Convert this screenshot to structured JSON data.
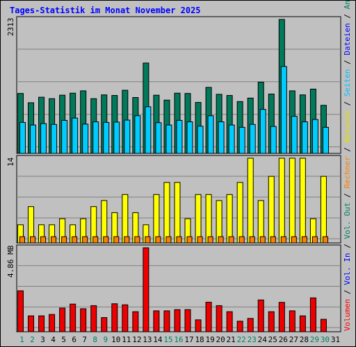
{
  "title": "Tages-Statistik im Monat November 2025",
  "panels": {
    "top_max_label": "2313",
    "mid_max_label": "14",
    "bottom_max_label": "4.86 MB"
  },
  "legend": [
    {
      "text": "Volumen",
      "color": "#ff0000"
    },
    {
      "text": " / ",
      "color": "#000000"
    },
    {
      "text": "Vol. In",
      "color": "#0000ff"
    },
    {
      "text": " / ",
      "color": "#000000"
    },
    {
      "text": "Vol. Out",
      "color": "#008060"
    },
    {
      "text": " / ",
      "color": "#000000"
    },
    {
      "text": "Rechner",
      "color": "#ff8000"
    },
    {
      "text": " / ",
      "color": "#000000"
    },
    {
      "text": "Besuche",
      "color": "#e0e000"
    },
    {
      "text": " / ",
      "color": "#000000"
    },
    {
      "text": "Seiten",
      "color": "#00c0ff"
    },
    {
      "text": " / ",
      "color": "#000000"
    },
    {
      "text": "Dateien",
      "color": "#0000ff"
    },
    {
      "text": " / ",
      "color": "#000000"
    },
    {
      "text": "Anfragen",
      "color": "#008060"
    }
  ],
  "colors": {
    "anfragen": "#007a5a",
    "dateien": "#0040ff",
    "seiten": "#00ccff",
    "besuche": "#ffff00",
    "rechner": "#ff8000",
    "volumen": "#ee0000",
    "weekend_label": "#008060",
    "weekday_label": "#000000"
  },
  "chart_data": {
    "type": "bar",
    "categories": [
      "1",
      "2",
      "3",
      "4",
      "5",
      "6",
      "7",
      "8",
      "9",
      "10",
      "11",
      "12",
      "13",
      "14",
      "15",
      "16",
      "17",
      "18",
      "19",
      "20",
      "21",
      "22",
      "23",
      "24",
      "25",
      "26",
      "27",
      "28",
      "29",
      "30",
      "31"
    ],
    "weekend_days": [
      1,
      2,
      8,
      9,
      15,
      16,
      22,
      23,
      29,
      30
    ],
    "panels": [
      {
        "name": "requests",
        "ymax": 2313,
        "series": [
          {
            "name": "Anfragen",
            "values": [
              1035,
              875,
              970,
              945,
              1005,
              1040,
              1080,
              945,
              1010,
              1000,
              1090,
              965,
              1560,
              1005,
              920,
              1040,
              1035,
              880,
              1140,
              1020,
              1000,
              895,
              955,
              1230,
              1025,
              2313,
              1080,
              1010,
              1110,
              830,
              null
            ]
          },
          {
            "name": "Seiten",
            "values": [
              535,
              490,
              515,
              500,
              570,
              610,
              505,
              545,
              535,
              540,
              575,
              650,
              805,
              530,
              490,
              570,
              545,
              470,
              650,
              545,
              490,
              450,
              500,
              760,
              465,
              1500,
              640,
              545,
              585,
              450,
              null
            ]
          }
        ]
      },
      {
        "name": "visits",
        "ymax": 14,
        "series": [
          {
            "name": "Besuche",
            "values": [
              3,
              6,
              3,
              3,
              4,
              3,
              4,
              6,
              7,
              5,
              8,
              5,
              3,
              8,
              10,
              10,
              4,
              8,
              8,
              7,
              8,
              10,
              14,
              7,
              11,
              14,
              14,
              14,
              4,
              11,
              null
            ]
          },
          {
            "name": "Rechner",
            "values": [
              1,
              1,
              1,
              1,
              1,
              1,
              1,
              1,
              1,
              1,
              1,
              1,
              1,
              1,
              1,
              1,
              1,
              1,
              1,
              1,
              1,
              1,
              1,
              1,
              1,
              1,
              1,
              1,
              1,
              1,
              null
            ]
          }
        ]
      },
      {
        "name": "volume",
        "ymax": 4.86,
        "series": [
          {
            "name": "Volumen",
            "values": [
              2.37,
              0.92,
              0.92,
              1.0,
              1.37,
              1.6,
              1.33,
              1.51,
              0.82,
              1.62,
              1.56,
              1.16,
              4.86,
              1.21,
              1.21,
              1.28,
              1.28,
              0.69,
              1.71,
              1.51,
              1.16,
              0.61,
              0.77,
              1.84,
              1.16,
              1.7,
              1.21,
              0.92,
              1.96,
              0.72,
              null
            ]
          }
        ]
      }
    ]
  }
}
